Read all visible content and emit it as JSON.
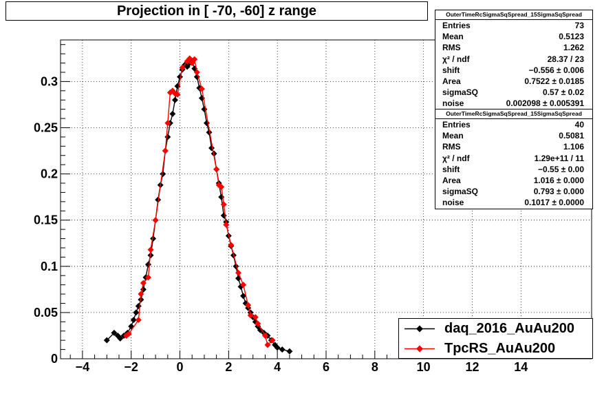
{
  "chart_data": {
    "type": "scatter",
    "title": "Projection in [ -70, -60] z range",
    "xlabel": "",
    "ylabel": "",
    "xlim": [
      -4.9,
      16.9
    ],
    "ylim": [
      0,
      0.345
    ],
    "x_ticks": [
      -4,
      -2,
      0,
      2,
      4,
      6,
      8,
      10,
      12,
      14
    ],
    "x_tick_labels": [
      "−4",
      "−2",
      "0",
      "2",
      "4",
      "6",
      "8",
      "10",
      "12",
      "14"
    ],
    "y_ticks": [
      0,
      0.05,
      0.1,
      0.15,
      0.2,
      0.25,
      0.3
    ],
    "y_tick_labels": [
      "0",
      "0.05",
      "0.1",
      "0.15",
      "0.2",
      "0.25",
      "0.3"
    ],
    "grid": true,
    "legend_position": "bottom-right",
    "series": [
      {
        "name": "daq_2016_AuAu200",
        "color": "#000000",
        "marker": "diamond",
        "line": true,
        "points": [
          [
            -3.0,
            0.02
          ],
          [
            -2.7,
            0.028
          ],
          [
            -2.55,
            0.025
          ],
          [
            -2.45,
            0.022
          ],
          [
            -2.3,
            0.025
          ],
          [
            -2.15,
            0.028
          ],
          [
            -2.0,
            0.035
          ],
          [
            -1.9,
            0.042
          ],
          [
            -1.8,
            0.05
          ],
          [
            -1.7,
            0.057
          ],
          [
            -1.6,
            0.064
          ],
          [
            -1.5,
            0.075
          ],
          [
            -1.4,
            0.088
          ],
          [
            -1.3,
            0.102
          ],
          [
            -1.2,
            0.112
          ],
          [
            -1.1,
            0.13
          ],
          [
            -1.0,
            0.15
          ],
          [
            -0.9,
            0.172
          ],
          [
            -0.8,
            0.188
          ],
          [
            -0.7,
            0.2
          ],
          [
            -0.6,
            0.225
          ],
          [
            -0.5,
            0.24
          ],
          [
            -0.4,
            0.255
          ],
          [
            -0.3,
            0.265
          ],
          [
            -0.2,
            0.28
          ],
          [
            -0.1,
            0.295
          ],
          [
            0.0,
            0.305
          ],
          [
            0.1,
            0.313
          ],
          [
            0.2,
            0.318
          ],
          [
            0.3,
            0.316
          ],
          [
            0.4,
            0.32
          ],
          [
            0.5,
            0.322
          ],
          [
            0.6,
            0.314
          ],
          [
            0.7,
            0.305
          ],
          [
            0.8,
            0.293
          ],
          [
            0.9,
            0.282
          ],
          [
            1.0,
            0.27
          ],
          [
            1.1,
            0.255
          ],
          [
            1.2,
            0.245
          ],
          [
            1.3,
            0.228
          ],
          [
            1.4,
            0.222
          ],
          [
            1.5,
            0.205
          ],
          [
            1.6,
            0.19
          ],
          [
            1.7,
            0.175
          ],
          [
            1.8,
            0.155
          ],
          [
            1.9,
            0.148
          ],
          [
            2.0,
            0.133
          ],
          [
            2.1,
            0.122
          ],
          [
            2.2,
            0.112
          ],
          [
            2.3,
            0.1
          ],
          [
            2.4,
            0.087
          ],
          [
            2.5,
            0.078
          ],
          [
            2.6,
            0.068
          ],
          [
            2.7,
            0.06
          ],
          [
            2.8,
            0.055
          ],
          [
            2.9,
            0.05
          ],
          [
            3.0,
            0.045
          ],
          [
            3.1,
            0.04
          ],
          [
            3.2,
            0.035
          ],
          [
            3.3,
            0.031
          ],
          [
            3.45,
            0.028
          ],
          [
            3.6,
            0.025
          ],
          [
            3.75,
            0.02
          ],
          [
            3.9,
            0.015
          ],
          [
            4.0,
            0.012
          ],
          [
            4.2,
            0.01
          ],
          [
            4.5,
            0.008
          ]
        ]
      },
      {
        "name": "TpcRS_AuAu200",
        "color": "#ff0000",
        "marker": "diamond",
        "line": true,
        "points": [
          [
            -2.2,
            0.025
          ],
          [
            -2.1,
            0.027
          ],
          [
            -1.7,
            0.042
          ],
          [
            -1.6,
            0.07
          ],
          [
            -1.5,
            0.082
          ],
          [
            -1.3,
            0.088
          ],
          [
            -1.2,
            0.118
          ],
          [
            -1.0,
            0.15
          ],
          [
            -0.6,
            0.225
          ],
          [
            -0.5,
            0.255
          ],
          [
            -0.4,
            0.288
          ],
          [
            -0.3,
            0.29
          ],
          [
            -0.2,
            0.287
          ],
          [
            -0.1,
            0.286
          ],
          [
            0.1,
            0.315
          ],
          [
            0.3,
            0.322
          ],
          [
            0.4,
            0.325
          ],
          [
            0.5,
            0.32
          ],
          [
            0.6,
            0.324
          ],
          [
            0.7,
            0.31
          ],
          [
            0.9,
            0.292
          ],
          [
            1.5,
            0.205
          ],
          [
            1.6,
            0.188
          ],
          [
            1.7,
            0.186
          ],
          [
            1.8,
            0.167
          ],
          [
            1.9,
            0.145
          ],
          [
            2.1,
            0.123
          ],
          [
            2.4,
            0.093
          ],
          [
            2.6,
            0.08
          ],
          [
            2.8,
            0.058
          ],
          [
            2.9,
            0.047
          ],
          [
            3.1,
            0.045
          ],
          [
            3.2,
            0.038
          ],
          [
            3.5,
            0.025
          ],
          [
            3.6,
            0.015
          ],
          [
            3.8,
            0.02
          ]
        ]
      }
    ]
  },
  "stats_boxes": [
    {
      "title": "OuterTimeRcSigmaSqSpread_15SigmaSqSpread",
      "rows": [
        {
          "label": "Entries",
          "value": "73"
        },
        {
          "label": "Mean",
          "value": "0.5123"
        },
        {
          "label": "RMS",
          "value": "1.262"
        },
        {
          "label": "χ² / ndf",
          "value": "28.37 / 23"
        },
        {
          "label": "shift",
          "value": "−0.556 ± 0.006"
        },
        {
          "label": "Area",
          "value": "0.7522 ± 0.0185"
        },
        {
          "label": "sigmaSQ",
          "value": "0.57 ± 0.02"
        },
        {
          "label": "noise",
          "value": "0.002098 ± 0.005391"
        }
      ]
    },
    {
      "title": "OuterTimeRcSigmaSqSpread_15SigmaSqSpread",
      "rows": [
        {
          "label": "Entries",
          "value": "40"
        },
        {
          "label": "Mean",
          "value": "0.5081"
        },
        {
          "label": "RMS",
          "value": "1.106"
        },
        {
          "label": "χ² / ndf",
          "value": "1.29e+11 / 11"
        },
        {
          "label": "shift",
          "value": "−0.55 ± 0.00"
        },
        {
          "label": "Area",
          "value": "1.016 ± 0.000"
        },
        {
          "label": "sigmaSQ",
          "value": "0.793 ± 0.000"
        },
        {
          "label": "noise",
          "value": "0.1017 ± 0.0000"
        }
      ]
    }
  ]
}
